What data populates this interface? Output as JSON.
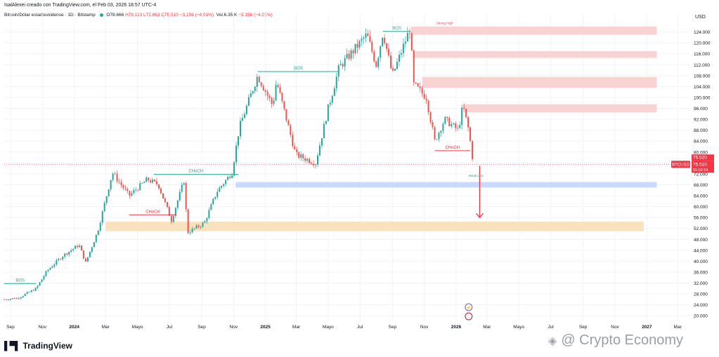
{
  "header": {
    "published_by": "IsalAlexei creado con TradingView.com, el Feb 03, 2026 18:57 UTC-4",
    "symbol_line": "Bitcoin/Dólar estadounidense · 1D · Bitstamp",
    "ohlc": {
      "o": "O78.666",
      "h": "H79.113",
      "l": "L72.863",
      "c": "C75.510",
      "chg": "−3.156 (−4,01%)"
    },
    "volume": "Vol.6.35 K",
    "volume_chg": "−3.156 (−4,01%)"
  },
  "price_panel": {
    "currency": "USD",
    "symbol_tag": "BTCUSD",
    "last_price": "75.510",
    "countdown": "01:02:15",
    "prev_label": "75.520"
  },
  "colors": {
    "up": "#26a69a",
    "down": "#ef5350",
    "bos": "#22ab94",
    "choch": "#f23645",
    "supply": "#f9d2d2",
    "blue_zone": "#c9d8fb",
    "orange_zone": "#fbe2bf",
    "grid": "#f0f3fa"
  },
  "chart_data": {
    "type": "candlestick",
    "ylabel": "USD",
    "ylim": [
      18000,
      128000
    ],
    "y_ticks": [
      "124.000",
      "120.000",
      "116.000",
      "112.000",
      "108.000",
      "104.000",
      "100.000",
      "96.000",
      "92.000",
      "88.000",
      "84.000",
      "80.000",
      "76.000",
      "72.000",
      "68.000",
      "64.000",
      "60.000",
      "56.000",
      "52.000",
      "48.000",
      "44.000",
      "40.000",
      "36.000",
      "32.000",
      "28.000",
      "24.000",
      "20.000"
    ],
    "x_labels": [
      "Sep",
      "Nov",
      "2024",
      "Mar",
      "Mayo",
      "Jul",
      "Sep",
      "Nov",
      "2025",
      "Mar",
      "Mayo",
      "Jul",
      "Sep",
      "Nov",
      "2026",
      "Mar",
      "Mayo",
      "Jul",
      "Sep",
      "Nov",
      "2027",
      "Mar"
    ],
    "price_path": [
      [
        "2023-08-20",
        26000
      ],
      [
        "2023-09-15",
        26500
      ],
      [
        "2023-10-20",
        30000
      ],
      [
        "2023-11-10",
        36500
      ],
      [
        "2023-12-10",
        42000
      ],
      [
        "2024-01-10",
        46000
      ],
      [
        "2024-01-23",
        39500
      ],
      [
        "2024-02-15",
        51000
      ],
      [
        "2024-03-14",
        72500
      ],
      [
        "2024-04-15",
        64000
      ],
      [
        "2024-05-20",
        70000
      ],
      [
        "2024-06-10",
        68000
      ],
      [
        "2024-07-05",
        55000
      ],
      [
        "2024-07-29",
        69500
      ],
      [
        "2024-08-05",
        50500
      ],
      [
        "2024-09-06",
        54000
      ],
      [
        "2024-09-30",
        65500
      ],
      [
        "2024-10-29",
        72500
      ],
      [
        "2024-11-12",
        89000
      ],
      [
        "2024-12-17",
        108000
      ],
      [
        "2025-01-15",
        97000
      ],
      [
        "2025-01-22",
        106000
      ],
      [
        "2025-02-28",
        79000
      ],
      [
        "2025-04-07",
        76000
      ],
      [
        "2025-05-01",
        96000
      ],
      [
        "2025-05-22",
        111000
      ],
      [
        "2025-07-14",
        123000
      ],
      [
        "2025-08-01",
        112000
      ],
      [
        "2025-08-14",
        124000
      ],
      [
        "2025-09-01",
        108000
      ],
      [
        "2025-10-06",
        126000
      ],
      [
        "2025-10-10",
        105000
      ],
      [
        "2025-11-05",
        100000
      ],
      [
        "2025-11-21",
        84000
      ],
      [
        "2025-12-10",
        92000
      ],
      [
        "2026-01-05",
        88000
      ],
      [
        "2026-01-14",
        97000
      ],
      [
        "2026-01-25",
        88000
      ],
      [
        "2026-02-03",
        75510
      ]
    ],
    "zones": [
      {
        "kind": "supply",
        "from": "2025-10-06",
        "to": "2027-01-20",
        "y0": 123000,
        "y1": 126000
      },
      {
        "kind": "supply",
        "from": "2025-10-10",
        "to": "2027-01-20",
        "y0": 114500,
        "y1": 117000
      },
      {
        "kind": "supply",
        "from": "2025-10-28",
        "to": "2027-01-20",
        "y0": 103500,
        "y1": 107500
      },
      {
        "kind": "supply",
        "from": "2026-01-14",
        "to": "2027-01-20",
        "y0": 94500,
        "y1": 97500
      },
      {
        "kind": "blue_zone",
        "from": "2024-11-05",
        "to": "2027-01-20",
        "y0": 67000,
        "y1": 69000
      },
      {
        "kind": "orange_zone",
        "from": "2024-03-01",
        "to": "2026-12-26",
        "y0": 51000,
        "y1": 54500
      }
    ],
    "structure_lines": [
      {
        "label": "BOS",
        "kind": "bos",
        "from": "2023-08-20",
        "to": "2023-10-20",
        "y": 31800
      },
      {
        "label": "CHoCH",
        "kind": "bos",
        "from": "2024-06-01",
        "to": "2024-11-10",
        "y": 71800
      },
      {
        "label": "CHoCH",
        "kind": "choch",
        "from": "2024-04-15",
        "to": "2024-07-15",
        "y": 57000
      },
      {
        "label": "BOS",
        "kind": "bos",
        "from": "2024-12-17",
        "to": "2025-05-22",
        "y": 109500
      },
      {
        "label": "BOS",
        "kind": "bos",
        "from": "2025-08-14",
        "to": "2025-10-06",
        "y": 124200
      },
      {
        "label": "CHoCH",
        "kind": "choch",
        "from": "2025-11-21",
        "to": "2026-01-28",
        "y": 80500
      }
    ],
    "annotations": [
      {
        "text": "Strong High",
        "date": "2025-12-10",
        "y": 126800,
        "kind": "choch"
      },
      {
        "text": "Weak Low",
        "date": "2026-02-08",
        "y": 71000,
        "kind": "bos"
      }
    ],
    "projection_arrow": {
      "from_date": "2026-02-15",
      "from_y": 75000,
      "to_date": "2026-02-15",
      "to_y": 56000
    }
  },
  "watermarks": {
    "tradingview": "TradingView",
    "site": "@ Crypto Economy"
  }
}
